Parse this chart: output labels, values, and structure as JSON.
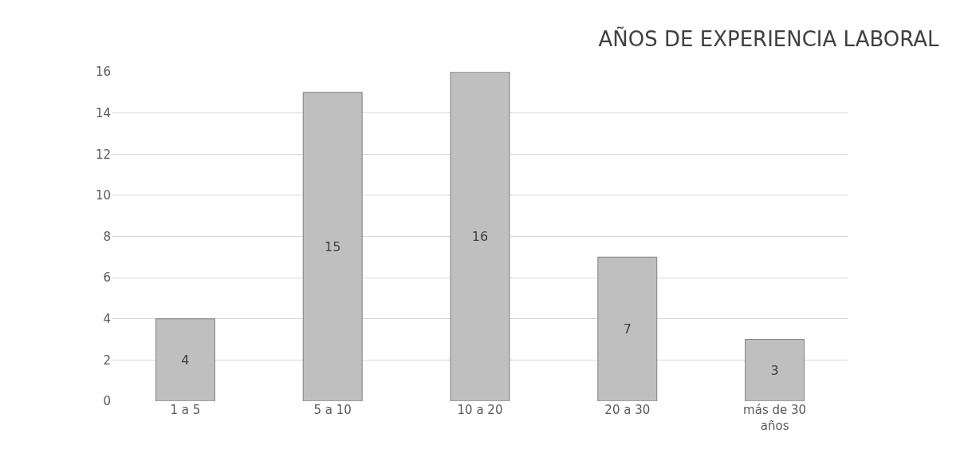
{
  "chart_data": {
    "type": "bar",
    "title": "AÑOS DE EXPERIENCIA LABORAL",
    "categories": [
      "1 a 5",
      "5 a 10",
      "10 a 20",
      "20 a 30",
      "más de 30 años"
    ],
    "values": [
      4,
      15,
      16,
      7,
      3
    ],
    "color": "#bfbfbf",
    "ylim": [
      0,
      16
    ],
    "yticks": [
      0,
      2,
      4,
      6,
      8,
      10,
      12,
      14,
      16
    ],
    "grid": "y",
    "data_labels": true,
    "legend": false
  }
}
